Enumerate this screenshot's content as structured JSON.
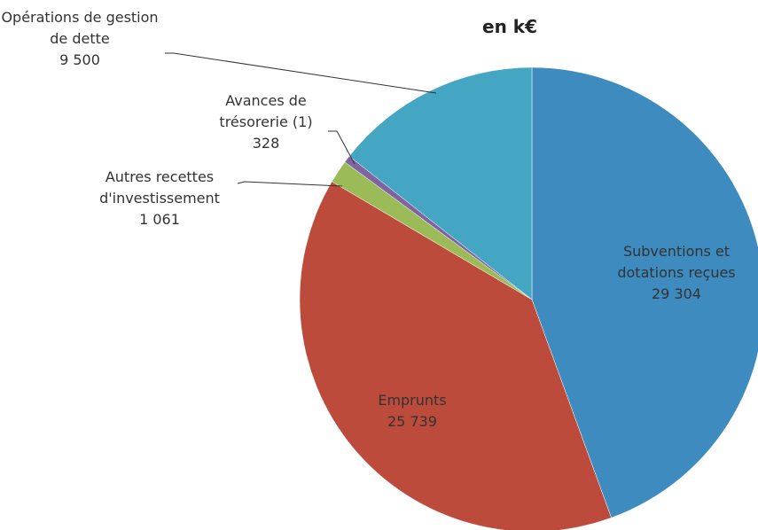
{
  "chart_data": {
    "type": "pie",
    "title": "en k€",
    "categories": [
      "Subventions et dotations reçues",
      "Emprunts",
      "Autres recettes d'investissement",
      "Avances de trésorerie (1)",
      "Opérations de gestion de dette"
    ],
    "values": [
      29304,
      25739,
      1061,
      328,
      9500
    ],
    "value_labels": [
      "29 304",
      "25 739",
      "1 061",
      "328",
      "9 500"
    ],
    "colors": [
      "#3d8bbf",
      "#bd4b3b",
      "#9bbb59",
      "#8064a2",
      "#45a6c4"
    ]
  }
}
